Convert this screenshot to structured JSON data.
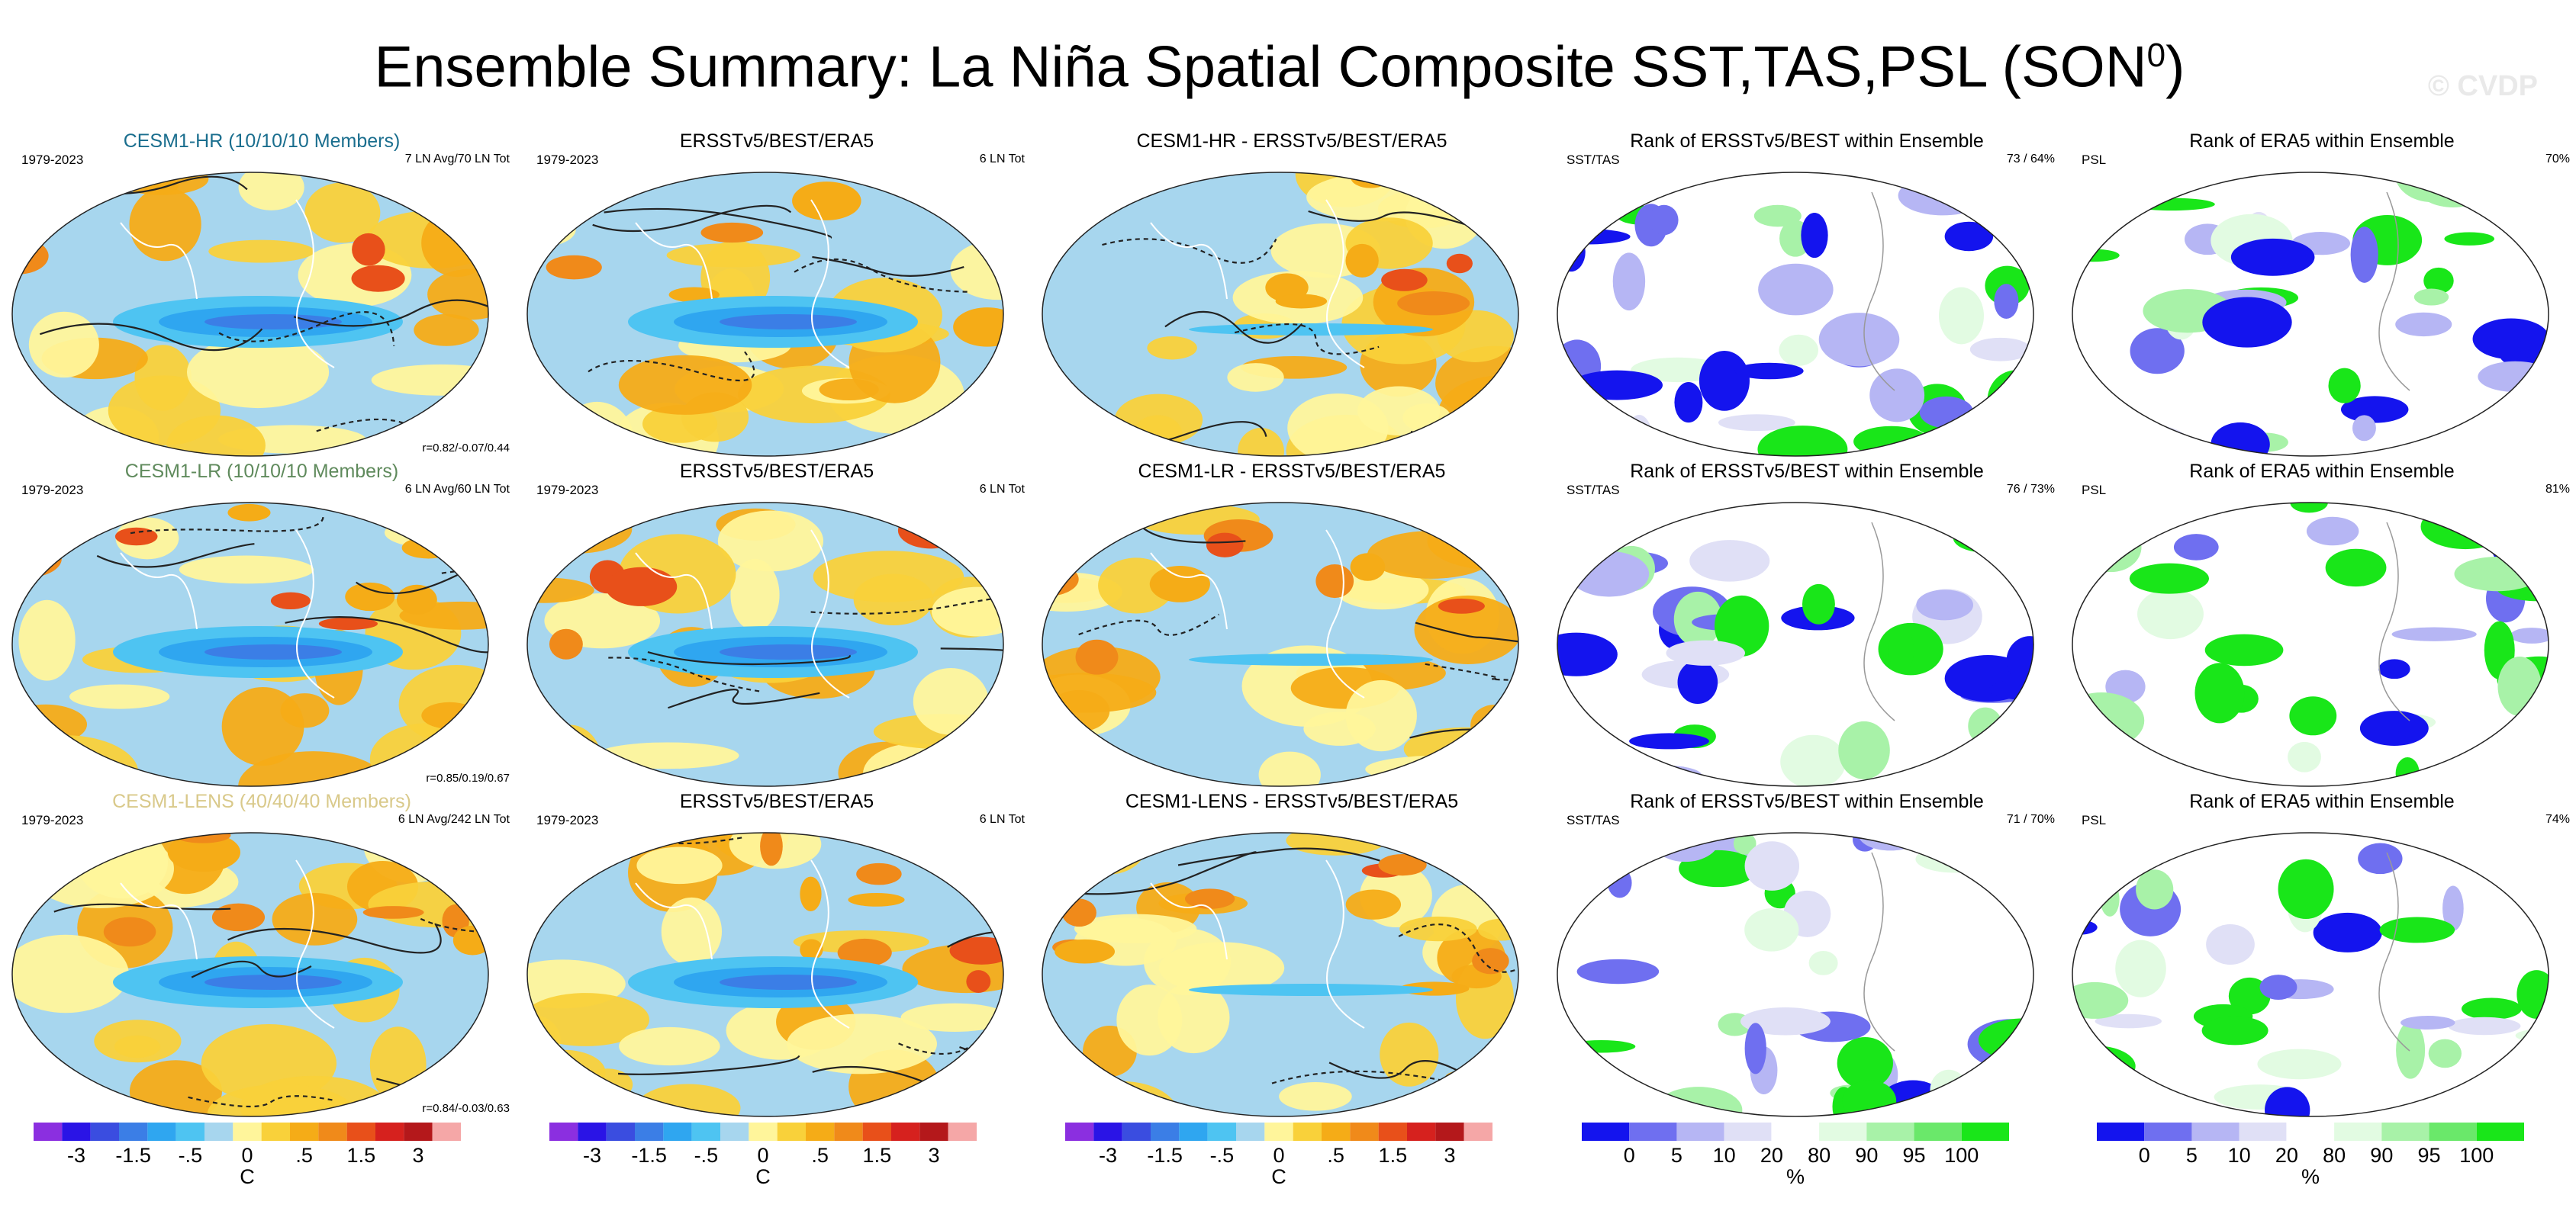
{
  "title": "Ensemble Summary: La Niña Spatial Composite SST,TAS,PSL (SON",
  "title_sup": "0",
  "title_close": ")",
  "watermark": "© CVDP",
  "chart_data": {
    "type": "heatmap",
    "description_grid": "3 rows x 5 columns of global map panels",
    "rows": [
      {
        "panels": [
          {
            "title": "CESM1-HR (10/10/10 Members)",
            "left": "1979-2023",
            "right": "7 LN Avg/70 LN Tot",
            "bottom_right": "r=0.82/-0.07/0.44",
            "kind": "anom",
            "title_color": "#1a6e8e"
          },
          {
            "title": "ERSSTv5/BEST/ERA5",
            "left": "1979-2023",
            "right": "6 LN Tot",
            "bottom_right": "",
            "kind": "anom",
            "title_color": "#000000"
          },
          {
            "title": "CESM1-HR - ERSSTv5/BEST/ERA5",
            "left": "",
            "right": "",
            "bottom_right": "",
            "kind": "diff",
            "title_color": "#000000"
          },
          {
            "title": "Rank of ERSSTv5/BEST within Ensemble",
            "left": "SST/TAS",
            "right": "73 /  64%",
            "bottom_right": "",
            "kind": "rank",
            "title_color": "#000000"
          },
          {
            "title": "Rank of ERA5 within Ensemble",
            "left": "PSL",
            "right": "70%",
            "bottom_right": "",
            "kind": "rank",
            "title_color": "#000000"
          }
        ]
      },
      {
        "panels": [
          {
            "title": "CESM1-LR (10/10/10 Members)",
            "left": "1979-2023",
            "right": "6 LN Avg/60 LN Tot",
            "bottom_right": "r=0.85/0.19/0.67",
            "kind": "anom",
            "title_color": "#5f8a5c"
          },
          {
            "title": "ERSSTv5/BEST/ERA5",
            "left": "1979-2023",
            "right": "6 LN Tot",
            "bottom_right": "",
            "kind": "anom",
            "title_color": "#000000"
          },
          {
            "title": "CESM1-LR - ERSSTv5/BEST/ERA5",
            "left": "",
            "right": "",
            "bottom_right": "",
            "kind": "diff",
            "title_color": "#000000"
          },
          {
            "title": "Rank of ERSSTv5/BEST within Ensemble",
            "left": "SST/TAS",
            "right": "76 /  73%",
            "bottom_right": "",
            "kind": "rank",
            "title_color": "#000000"
          },
          {
            "title": "Rank of ERA5 within Ensemble",
            "left": "PSL",
            "right": "81%",
            "bottom_right": "",
            "kind": "rank",
            "title_color": "#000000"
          }
        ]
      },
      {
        "panels": [
          {
            "title": "CESM1-LENS (40/40/40 Members)",
            "left": "1979-2023",
            "right": "6 LN Avg/242 LN Tot",
            "bottom_right": "r=0.84/-0.03/0.63",
            "kind": "anom",
            "title_color": "#d9c98a"
          },
          {
            "title": "ERSSTv5/BEST/ERA5",
            "left": "1979-2023",
            "right": "6 LN Tot",
            "bottom_right": "",
            "kind": "anom",
            "title_color": "#000000"
          },
          {
            "title": "CESM1-LENS - ERSSTv5/BEST/ERA5",
            "left": "",
            "right": "",
            "bottom_right": "",
            "kind": "diff",
            "title_color": "#000000"
          },
          {
            "title": "Rank of ERSSTv5/BEST within Ensemble",
            "left": "SST/TAS",
            "right": "71 /  70%",
            "bottom_right": "",
            "kind": "rank",
            "title_color": "#000000"
          },
          {
            "title": "Rank of ERA5 within Ensemble",
            "left": "PSL",
            "right": "74%",
            "bottom_right": "",
            "kind": "rank",
            "title_color": "#000000"
          }
        ]
      }
    ],
    "colorbars": [
      {
        "kind": "anom",
        "ticks": [
          "-3",
          "-1.5",
          "-.5",
          "0",
          ".5",
          "1.5",
          "3"
        ],
        "unit": "C"
      },
      {
        "kind": "anom",
        "ticks": [
          "-3",
          "-1.5",
          "-.5",
          "0",
          ".5",
          "1.5",
          "3"
        ],
        "unit": "C"
      },
      {
        "kind": "anom",
        "ticks": [
          "-3",
          "-1.5",
          "-.5",
          "0",
          ".5",
          "1.5",
          "3"
        ],
        "unit": "C"
      },
      {
        "kind": "rank",
        "ticks": [
          "0",
          "5",
          "10",
          "20",
          "80",
          "90",
          "95",
          "100"
        ],
        "unit": "%"
      },
      {
        "kind": "rank",
        "ticks": [
          "0",
          "5",
          "10",
          "20",
          "80",
          "90",
          "95",
          "100"
        ],
        "unit": "%"
      }
    ],
    "anom_colors": [
      "#8b2fe0",
      "#2a14e6",
      "#3a4de0",
      "#3b7ee6",
      "#2fa6f0",
      "#4ec4f2",
      "#a7d6ee",
      "#fff59b",
      "#f9d13a",
      "#f5ac17",
      "#f08a1a",
      "#e8501a",
      "#d6211e",
      "#b4181b",
      "#f5a7a7"
    ],
    "rank_colors": [
      "#1414ee",
      "#6f6ff0",
      "#b6b6f4",
      "#e0e0f6",
      "#ffffff",
      "#e2fbe2",
      "#a8f2a8",
      "#6ae86a",
      "#19e619"
    ]
  }
}
